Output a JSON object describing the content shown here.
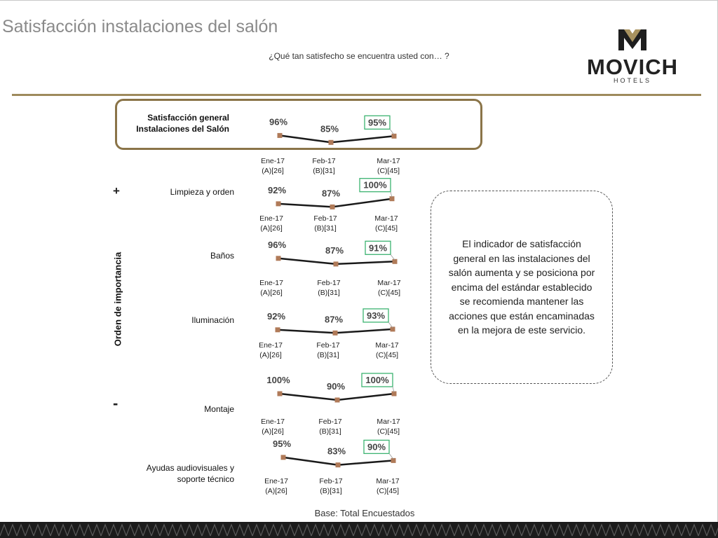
{
  "header": {
    "title": "Satisfacción instalaciones del salón",
    "subtitle": "¿Qué tan satisfecho se encuentra usted con… ?",
    "logo_text": "MOVICH",
    "logo_sub": "HOTELS"
  },
  "axis": {
    "label": "Orden de importancia",
    "plus": "+",
    "minus": "-"
  },
  "comment": "El indicador de satisfacción general en las instalaciones del salón aumenta y se posiciona por encima del estándar establecido se recomienda mantener las acciones que están encaminadas en la mejora de este servicio.",
  "base_note": "Base: Total Encuestados",
  "colors": {
    "accent": "#9e8a5c",
    "marker": "#b07a58",
    "highlight": "#3cb371",
    "line": "#1a1a1a"
  },
  "chart_data": [
    {
      "type": "line",
      "name": "Satisfacción general Instalaciones del Salón",
      "label_lines": [
        "Satisfacción general",
        "Instalaciones del Salón"
      ],
      "categories": [
        [
          "Ene-17",
          "(A)[26]"
        ],
        [
          "Feb-17",
          "(B)[31]"
        ],
        [
          "Mar-17",
          "(C)[45]"
        ]
      ],
      "values": [
        96,
        85,
        95
      ],
      "labels": [
        "96%",
        "85%",
        "95%"
      ],
      "highlight_index": 2
    },
    {
      "type": "line",
      "name": "Limpieza y orden",
      "label_lines": [
        "Limpieza y orden"
      ],
      "categories": [
        [
          "Ene-17",
          "(A)[26]"
        ],
        [
          "Feb-17",
          "(B)[31]"
        ],
        [
          "Mar-17",
          "(C)[45]"
        ]
      ],
      "values": [
        92,
        87,
        100
      ],
      "labels": [
        "92%",
        "87%",
        "100%"
      ],
      "highlight_index": 2
    },
    {
      "type": "line",
      "name": "Baños",
      "label_lines": [
        "Baños"
      ],
      "categories": [
        [
          "Ene-17",
          "(A)[26]"
        ],
        [
          "Feb-17",
          "(B)[31]"
        ],
        [
          "Mar-17",
          "(C)[45]"
        ]
      ],
      "values": [
        96,
        87,
        91
      ],
      "labels": [
        "96%",
        "87%",
        "91%"
      ],
      "highlight_index": 2
    },
    {
      "type": "line",
      "name": "Iluminación",
      "label_lines": [
        "Iluminación"
      ],
      "categories": [
        [
          "Ene-17",
          "(A)[26]"
        ],
        [
          "Feb-17",
          "(B)[31]"
        ],
        [
          "Mar-17",
          "(C)[45]"
        ]
      ],
      "values": [
        92,
        87,
        93
      ],
      "labels": [
        "92%",
        "87%",
        "93%"
      ],
      "highlight_index": 2
    },
    {
      "type": "line",
      "name": "Montaje",
      "label_lines": [
        "Montaje"
      ],
      "categories": [
        [
          "Ene-17",
          "(A)[26]"
        ],
        [
          "Feb-17",
          "(B)[31]"
        ],
        [
          "Mar-17",
          "(C)[45]"
        ]
      ],
      "values": [
        100,
        90,
        100
      ],
      "labels": [
        "100%",
        "90%",
        "100%"
      ],
      "highlight_index": 2
    },
    {
      "type": "line",
      "name": "Ayudas audiovisuales y soporte técnico",
      "label_lines": [
        "Ayudas audiovisuales y",
        "soporte técnico"
      ],
      "categories": [
        [
          "Ene-17",
          "(A)[26]"
        ],
        [
          "Feb-17",
          "(B)[31]"
        ],
        [
          "Mar-17",
          "(C)[45]"
        ]
      ],
      "values": [
        95,
        83,
        90
      ],
      "labels": [
        "95%",
        "83%",
        "90%"
      ],
      "highlight_index": 2
    }
  ]
}
